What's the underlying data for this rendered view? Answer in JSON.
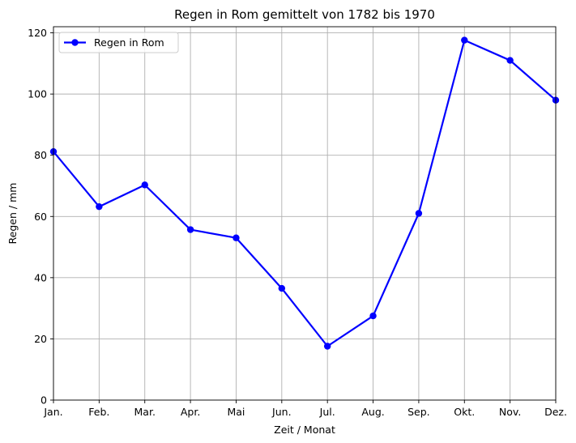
{
  "chart_data": {
    "type": "line",
    "title": "Regen in Rom gemittelt von 1782 bis 1970",
    "xlabel": "Zeit / Monat",
    "ylabel": "Regen / mm",
    "categories": [
      "Jan.",
      "Feb.",
      "Mar.",
      "Apr.",
      "Mai",
      "Jun.",
      "Jul.",
      "Aug.",
      "Sep.",
      "Okt.",
      "Nov.",
      "Dez."
    ],
    "series": [
      {
        "name": "Regen in Rom",
        "color": "#0000ff",
        "marker": "circle",
        "values": [
          81.2,
          63.2,
          70.3,
          55.7,
          53.0,
          36.5,
          17.6,
          27.5,
          61.0,
          117.6,
          111.0,
          98.0
        ]
      }
    ],
    "ylim": [
      0,
      122
    ],
    "yticks": [
      0,
      20,
      40,
      60,
      80,
      100,
      120
    ],
    "grid": true,
    "legend_position": "top-left"
  }
}
